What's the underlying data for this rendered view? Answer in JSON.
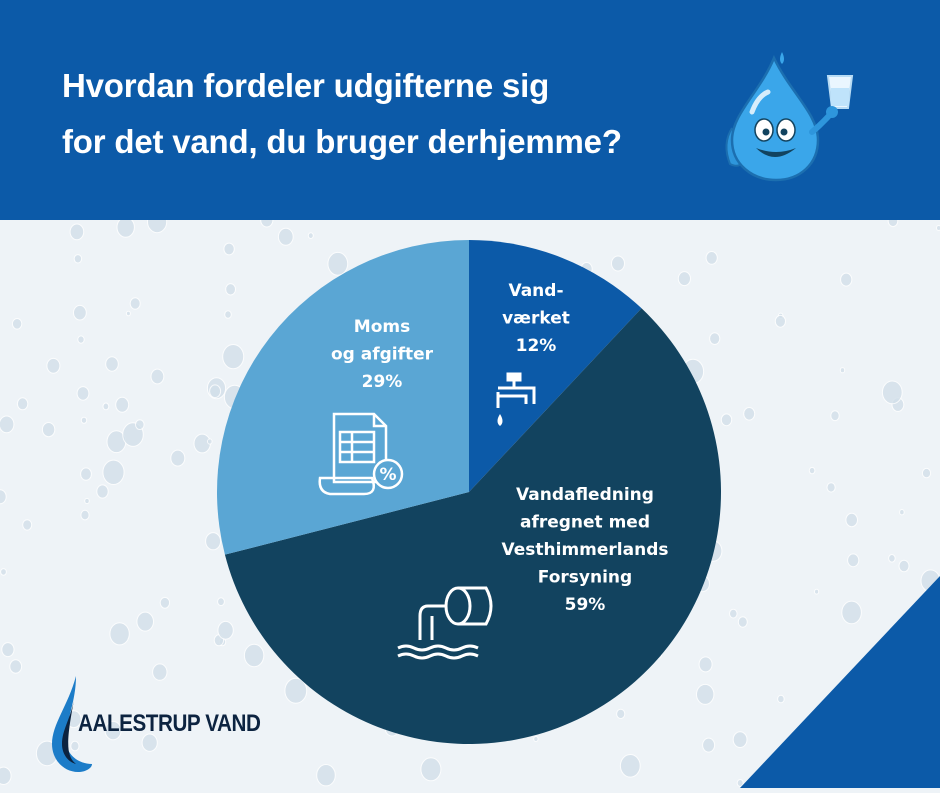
{
  "header": {
    "title_line1": "Hvordan fordeler udgifterne sig",
    "title_line2": "for det vand, du bruger derhjemme?"
  },
  "colors": {
    "header_bg": "#0c5aa8",
    "slice_vandvaerket": "#0c5aa8",
    "slice_vandafledning": "#12435f",
    "slice_moms": "#5aa6d4",
    "corner_triangle": "#0c5aa8"
  },
  "chart_data": {
    "type": "pie",
    "slices": [
      {
        "label_lines": [
          "Vand-",
          "værket",
          "12%"
        ],
        "value": 12,
        "icon": "faucet-icon"
      },
      {
        "label_lines": [
          "Vandafledning",
          "afregnet med",
          "Vesthimmerlands",
          "Forsyning",
          "59%"
        ],
        "value": 59,
        "icon": "drain-pipe-icon"
      },
      {
        "label_lines": [
          "Moms",
          "og afgifter",
          "29%"
        ],
        "value": 29,
        "icon": "tax-document-icon"
      }
    ]
  },
  "logo": {
    "text": "AALESTRUP VAND",
    "icon": "water-drop-logo-icon"
  },
  "mascot": {
    "icon": "water-drop-mascot-icon"
  }
}
